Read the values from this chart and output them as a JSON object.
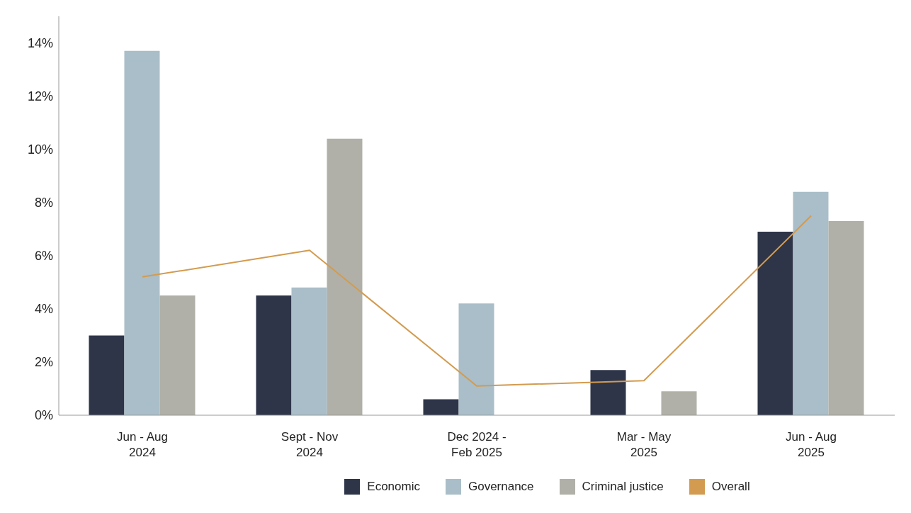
{
  "chart_data": {
    "type": "bar",
    "categories": [
      "Jun - Aug\n2024",
      "Sept - Nov\n2024",
      "Dec 2024 -\nFeb 2025",
      "Mar - May\n2025",
      "Jun - Aug\n2025"
    ],
    "series": [
      {
        "name": "Economic",
        "color": "#2e3549",
        "values": [
          3.0,
          4.5,
          0.6,
          1.7,
          6.9
        ]
      },
      {
        "name": "Governance",
        "color": "#a9bec8",
        "values": [
          13.7,
          4.8,
          4.2,
          0,
          8.4
        ]
      },
      {
        "name": "Criminal justice",
        "color": "#b0b0a8",
        "values": [
          4.5,
          10.4,
          0,
          0.9,
          7.3
        ]
      },
      {
        "name": "Overall",
        "type": "line",
        "color": "#d39b4f",
        "values": [
          5.2,
          6.2,
          1.1,
          1.3,
          7.5
        ]
      }
    ],
    "ylim": [
      0,
      15
    ],
    "yticks": [
      {
        "value": 0,
        "label": "0%"
      },
      {
        "value": 2,
        "label": "2%"
      },
      {
        "value": 4,
        "label": "4%"
      },
      {
        "value": 6,
        "label": "6%"
      },
      {
        "value": 8,
        "label": "8%"
      },
      {
        "value": 10,
        "label": "10%"
      },
      {
        "value": 12,
        "label": "12%"
      },
      {
        "value": 14,
        "label": "14%"
      }
    ],
    "grid": false,
    "legend": "bottom",
    "marker": "none"
  }
}
